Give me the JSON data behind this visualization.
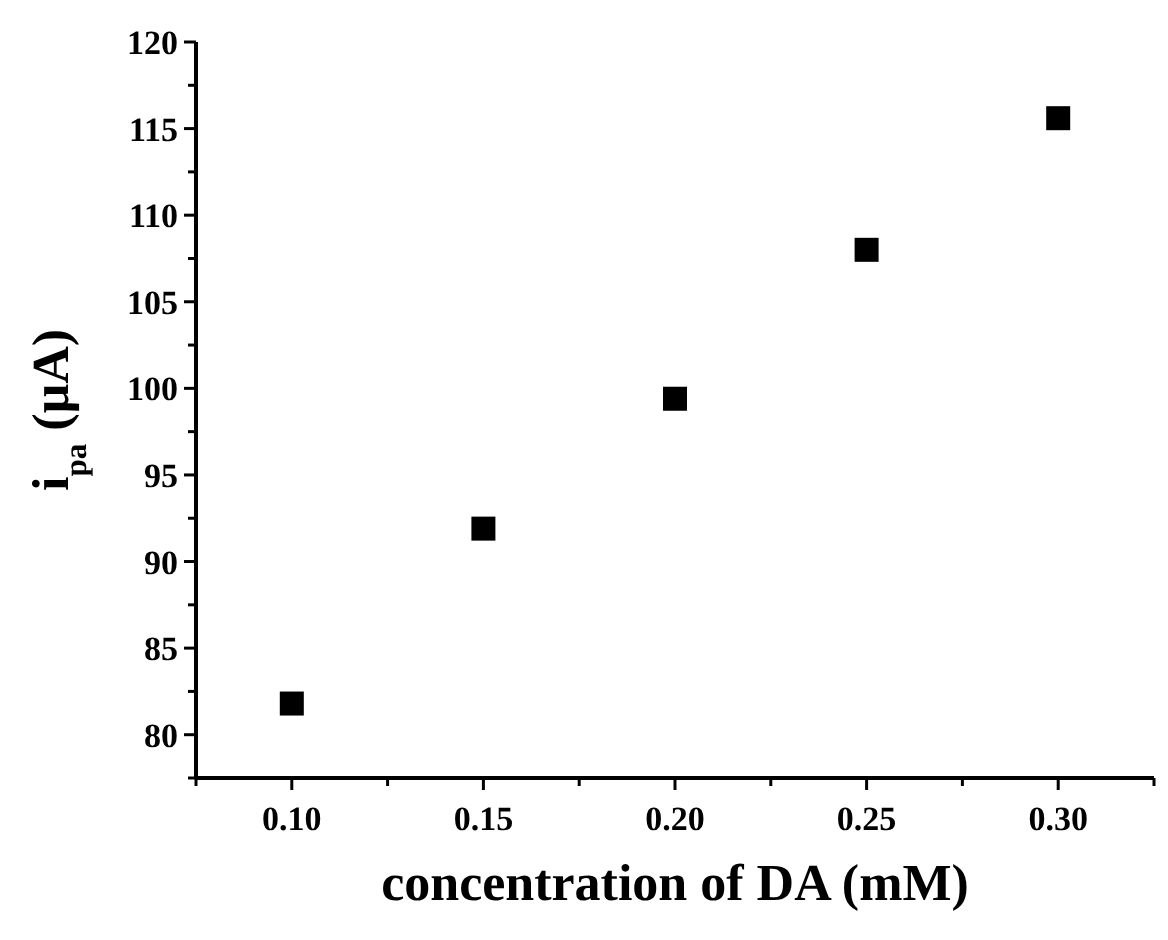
{
  "chart_data": {
    "type": "scatter",
    "xlabel": "concentration of DA (mM)",
    "ylabel": "i$_{pa}$ (μA)",
    "x": [
      0.1,
      0.15,
      0.2,
      0.25,
      0.3
    ],
    "series": [
      {
        "color": "#000000",
        "values": [
          81.8,
          91.9,
          99.4,
          108.0,
          115.6
        ]
      }
    ],
    "marker": "square",
    "grid": false,
    "xlim": [
      0.075,
      0.325
    ],
    "xticks": [
      {
        "value": 0.075,
        "label": null
      },
      {
        "value": 0.1,
        "label": "0.10"
      },
      {
        "value": 0.125,
        "label": null
      },
      {
        "value": 0.15,
        "label": "0.15"
      },
      {
        "value": 0.175,
        "label": null
      },
      {
        "value": 0.2,
        "label": "0.20"
      },
      {
        "value": 0.225,
        "label": null
      },
      {
        "value": 0.25,
        "label": "0.25"
      },
      {
        "value": 0.275,
        "label": null
      },
      {
        "value": 0.3,
        "label": "0.30"
      },
      {
        "value": 0.325,
        "label": null
      }
    ],
    "ylim": [
      77.5,
      120
    ],
    "yticks": [
      {
        "value": 77.5,
        "label": null
      },
      80,
      {
        "value": 82.5,
        "label": null
      },
      85,
      {
        "value": 87.5,
        "label": null
      },
      90,
      {
        "value": 92.5,
        "label": null
      },
      95,
      {
        "value": 97.5,
        "label": null
      },
      100,
      {
        "value": 102.5,
        "label": null
      },
      105,
      {
        "value": 107.5,
        "label": null
      },
      110,
      {
        "value": 112.5,
        "label": null
      },
      115,
      {
        "value": 117.5,
        "label": null
      },
      120
    ]
  }
}
